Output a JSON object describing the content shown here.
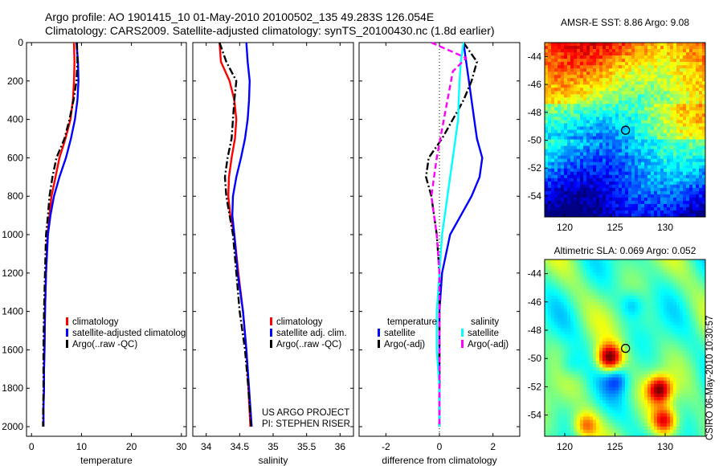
{
  "header": {
    "line1": "Argo profile: AO 1901415_10 01-May-2010 20100502_135 49.283S 126.054E",
    "line2": "Climatology: CARS2009. Satellite-adjusted climatology: synTS_20100430.nc (1.8d earlier)"
  },
  "side_label": "CSIRO 06-May-2010 10:30:57",
  "colors": {
    "red": "#ff0000",
    "blue": "#0000ff",
    "black": "#000000",
    "cyan": "#00ffff",
    "magenta": "#ff00ff"
  },
  "chart_data": [
    {
      "type": "line",
      "xlabel": "temperature",
      "xlim": [
        -1,
        31
      ],
      "xticks": [
        0,
        10,
        20,
        30
      ],
      "ylim": [
        0,
        2050
      ],
      "yticks": [
        0,
        200,
        400,
        600,
        800,
        1000,
        1200,
        1400,
        1600,
        1800,
        2000
      ],
      "y_reversed": true,
      "legend": {
        "position": "lower-left",
        "entries": [
          "climatology",
          "satellite-adjusted climatolog",
          "Argo(..raw -QC)"
        ]
      },
      "series": [
        {
          "name": "climatology",
          "color": "#ff0000",
          "style": "solid",
          "x": [
            8.5,
            8.6,
            8.5,
            8.3,
            7.8,
            6.8,
            5.6,
            4.8,
            4.0,
            3.6,
            3.2,
            2.9,
            2.7,
            2.6,
            2.5,
            2.5,
            2.4,
            2.4
          ],
          "y": [
            0,
            100,
            200,
            300,
            400,
            500,
            600,
            700,
            800,
            900,
            1000,
            1200,
            1400,
            1600,
            1700,
            1800,
            1900,
            2000
          ]
        },
        {
          "name": "satellite-adjusted climatolog",
          "color": "#0000ff",
          "style": "solid",
          "x": [
            9.0,
            9.3,
            9.4,
            9.2,
            8.7,
            7.9,
            6.9,
            5.6,
            4.5,
            3.8,
            3.3,
            2.9,
            2.7,
            2.6,
            2.5,
            2.5,
            2.4,
            2.4
          ],
          "y": [
            0,
            100,
            200,
            300,
            400,
            500,
            600,
            700,
            800,
            900,
            1000,
            1200,
            1400,
            1600,
            1700,
            1800,
            1900,
            2000
          ]
        },
        {
          "name": "Argo(..raw -QC)",
          "color": "#000000",
          "style": "dashdot",
          "x": [
            9.1,
            9.2,
            9.0,
            8.4,
            7.6,
            6.6,
            5.0,
            4.2,
            3.6,
            3.3,
            2.9,
            2.7,
            2.5,
            2.4,
            2.4,
            2.3
          ],
          "y": [
            0,
            100,
            200,
            300,
            400,
            500,
            600,
            700,
            800,
            900,
            1000,
            1200,
            1400,
            1600,
            1800,
            2000
          ]
        }
      ]
    },
    {
      "type": "line",
      "xlabel": "salinity",
      "xlim": [
        33.8,
        36.2
      ],
      "xticks": [
        34,
        34.5,
        35,
        35.5,
        36
      ],
      "ylim": [
        0,
        2050
      ],
      "y_reversed": true,
      "legend": {
        "position": "lower-right",
        "entries": [
          "climatology",
          "satellite adj. clim.",
          "Argo(..raw -QC)"
        ]
      },
      "annotation": [
        "US ARGO PROJECT",
        "PI: STEPHEN RISER"
      ],
      "series": [
        {
          "name": "climatology",
          "color": "#ff0000",
          "style": "solid",
          "x": [
            34.2,
            34.22,
            34.35,
            34.42,
            34.45,
            34.43,
            34.38,
            34.34,
            34.33,
            34.36,
            34.42,
            34.48,
            34.55,
            34.6,
            34.63,
            34.66
          ],
          "y": [
            0,
            100,
            200,
            300,
            400,
            500,
            600,
            700,
            800,
            900,
            1000,
            1200,
            1400,
            1600,
            1800,
            2000
          ]
        },
        {
          "name": "satellite adj. clim.",
          "color": "#0000ff",
          "style": "solid",
          "x": [
            34.6,
            34.62,
            34.65,
            34.64,
            34.62,
            34.58,
            34.52,
            34.45,
            34.4,
            34.39,
            34.42,
            34.47,
            34.55,
            34.6,
            34.64,
            34.68
          ],
          "y": [
            0,
            100,
            200,
            300,
            400,
            500,
            600,
            700,
            800,
            900,
            1000,
            1200,
            1400,
            1600,
            1800,
            2000
          ]
        },
        {
          "name": "Argo(..raw -QC)",
          "color": "#000000",
          "style": "dashdot",
          "x": [
            34.2,
            34.3,
            34.45,
            34.42,
            34.4,
            34.38,
            34.32,
            34.28,
            34.3,
            34.35,
            34.4,
            34.45,
            34.5,
            34.58,
            34.63,
            34.67
          ],
          "y": [
            0,
            100,
            200,
            300,
            400,
            500,
            600,
            700,
            800,
            900,
            1000,
            1200,
            1400,
            1600,
            1800,
            2000
          ]
        }
      ]
    },
    {
      "type": "line",
      "xlabel": "difference from climatology",
      "xlim": [
        -3,
        3
      ],
      "xticks": [
        -2,
        0,
        2
      ],
      "ylim": [
        0,
        2050
      ],
      "y_reversed": true,
      "reference_line_x": 0,
      "legend": {
        "position": "lower-center",
        "columns": [
          {
            "title": "temperature",
            "entries": [
              "satellite",
              "Argo(-adj)"
            ]
          },
          {
            "title": "salinity",
            "entries": [
              "satellite",
              "Argo(-adj)"
            ]
          }
        ]
      },
      "series": [
        {
          "name": "satellite",
          "group": "temperature",
          "color": "#0000ff",
          "style": "solid",
          "x": [
            0.9,
            1.0,
            1.1,
            1.2,
            1.3,
            1.4,
            1.6,
            1.5,
            1.2,
            0.8,
            0.4,
            0.1,
            0.0,
            0.0,
            0.0,
            0.0
          ],
          "y": [
            0,
            100,
            200,
            300,
            400,
            500,
            600,
            700,
            800,
            900,
            1000,
            1200,
            1400,
            1600,
            1800,
            2000
          ]
        },
        {
          "name": "Argo(-adj)",
          "group": "temperature",
          "color": "#000000",
          "style": "dashdot",
          "x": [
            0.9,
            1.4,
            1.2,
            0.9,
            0.5,
            0.1,
            -0.4,
            -0.5,
            -0.3,
            -0.2,
            -0.1,
            0.0,
            0.0,
            0.0,
            0.0
          ],
          "y": [
            0,
            100,
            200,
            300,
            400,
            500,
            600,
            700,
            800,
            900,
            1000,
            1200,
            1400,
            1700,
            2000
          ]
        },
        {
          "name": "satellite",
          "group": "salinity",
          "color": "#00ffff",
          "style": "solid",
          "x": [
            0.9,
            0.8,
            0.75,
            0.72,
            0.7,
            0.6,
            0.5,
            0.4,
            0.3,
            0.2,
            0.1,
            0.0,
            -0.1,
            -0.1,
            0.0,
            0.0
          ],
          "y": [
            0,
            100,
            200,
            300,
            400,
            500,
            600,
            700,
            800,
            900,
            1000,
            1200,
            1400,
            1600,
            1800,
            2000
          ]
        },
        {
          "name": "Argo(-adj)",
          "group": "salinity",
          "color": "#ff00ff",
          "style": "dashed",
          "x": [
            -0.3,
            1.0,
            0.5,
            0.3,
            0.1,
            -0.1,
            -0.2,
            -0.3,
            -0.2,
            -0.1,
            0.0,
            0.0,
            0.0,
            0.0
          ],
          "y": [
            0,
            80,
            150,
            300,
            450,
            600,
            700,
            800,
            900,
            1000,
            1200,
            1400,
            1700,
            2000
          ]
        }
      ]
    },
    {
      "type": "heatmap",
      "title": "AMSR-E SST: 8.86 Argo: 9.08",
      "xlim": [
        118,
        134
      ],
      "xticks": [
        120,
        125,
        130
      ],
      "ylim": [
        -55.5,
        -43
      ],
      "yticks": [
        -44,
        -46,
        -48,
        -50,
        -52,
        -54
      ],
      "colormap": "jet",
      "marker": {
        "lon": 126.054,
        "lat": -49.283
      }
    },
    {
      "type": "heatmap",
      "title": "Altimetric SLA: 0.069 Argo: 0.052",
      "xlim": [
        118,
        134
      ],
      "xticks": [
        120,
        125,
        130
      ],
      "ylim": [
        -55.5,
        -43
      ],
      "yticks": [
        -44,
        -46,
        -48,
        -50,
        -52,
        -54
      ],
      "colormap": "jet",
      "marker": {
        "lon": 126.054,
        "lat": -49.283
      }
    }
  ]
}
